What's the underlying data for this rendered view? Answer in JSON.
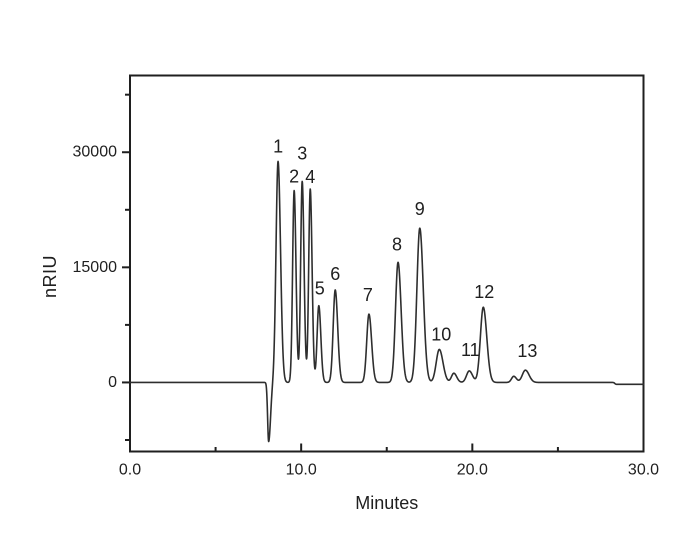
{
  "figure": {
    "background_color": "#ffffff",
    "trace_color": "#2e2e2e",
    "axis_color": "#1f1f1f",
    "text_color": "#1f1f1f"
  },
  "chart_data": {
    "type": "line",
    "chart_kind": "chromatogram",
    "title": "",
    "xlabel": "Minutes",
    "ylabel": "nRIU",
    "xlim": [
      0,
      30
    ],
    "ylim": [
      -9000,
      40000
    ],
    "grid": false,
    "legend": "none",
    "x_ticks": {
      "major": [
        {
          "value": 0,
          "label": "0.0"
        },
        {
          "value": 10,
          "label": "10.0"
        },
        {
          "value": 20,
          "label": "20.0"
        },
        {
          "value": 30,
          "label": "30.0"
        }
      ],
      "minor": [
        5,
        15,
        25
      ]
    },
    "y_ticks": {
      "major": [
        {
          "value": 0,
          "label": "0"
        },
        {
          "value": 15000,
          "label": "15000"
        },
        {
          "value": 30000,
          "label": "30000"
        }
      ],
      "minor": [
        -7500,
        7500,
        22500,
        37500
      ]
    },
    "baseline_value": 0,
    "injection_dip": {
      "time_min": 8.1,
      "depth_nriu": -7700,
      "sigma_left_min": 0.06,
      "sigma_right_min": 0.11
    },
    "peak_tail_factor": 1.2,
    "peaks": [
      {
        "label": "1",
        "time_min": 8.65,
        "height_nriu": 28800,
        "sigma_min": 0.12,
        "label_dx": 0,
        "label_dy": -15
      },
      {
        "label": "2",
        "time_min": 9.59,
        "height_nriu": 25000,
        "sigma_min": 0.09,
        "label_dx": 0,
        "label_dy": -14
      },
      {
        "label": "3",
        "time_min": 10.06,
        "height_nriu": 26200,
        "sigma_min": 0.09,
        "label_dx": 0,
        "label_dy": -28
      },
      {
        "label": "4",
        "time_min": 10.53,
        "height_nriu": 25200,
        "sigma_min": 0.09,
        "label_dx": 0,
        "label_dy": -12
      },
      {
        "label": "5",
        "time_min": 11.03,
        "height_nriu": 10000,
        "sigma_min": 0.1,
        "label_dx": 1,
        "label_dy": -17
      },
      {
        "label": "6",
        "time_min": 11.99,
        "height_nriu": 12050,
        "sigma_min": 0.12,
        "label_dx": 0,
        "label_dy": -16
      },
      {
        "label": "7",
        "time_min": 13.96,
        "height_nriu": 8900,
        "sigma_min": 0.13,
        "label_dx": -1,
        "label_dy": -19
      },
      {
        "label": "8",
        "time_min": 15.66,
        "height_nriu": 15650,
        "sigma_min": 0.15,
        "label_dx": -1,
        "label_dy": -18
      },
      {
        "label": "9",
        "time_min": 16.93,
        "height_nriu": 20100,
        "sigma_min": 0.17,
        "label_dx": 0,
        "label_dy": -19
      },
      {
        "label": "10",
        "time_min": 18.07,
        "height_nriu": 4300,
        "sigma_min": 0.18,
        "label_dx": 2,
        "label_dy": -15
      },
      {
        "label": "11",
        "time_min": 19.82,
        "height_nriu": 1500,
        "sigma_min": 0.16,
        "label_dx": 1,
        "label_dy": -21
      },
      {
        "label": "12",
        "time_min": 20.64,
        "height_nriu": 9800,
        "sigma_min": 0.17,
        "label_dx": 1,
        "label_dy": -15
      },
      {
        "label": "13",
        "time_min": 23.1,
        "height_nriu": 1600,
        "sigma_min": 0.18,
        "label_dx": 2,
        "label_dy": -19
      }
    ],
    "unlabeled_bumps": [
      {
        "time_min": 18.92,
        "height_nriu": 1200,
        "sigma_min": 0.14
      },
      {
        "time_min": 22.42,
        "height_nriu": 800,
        "sigma_min": 0.13
      }
    ],
    "baseline_end_step": {
      "time_min": 28.32,
      "offset_nriu": -250
    }
  }
}
